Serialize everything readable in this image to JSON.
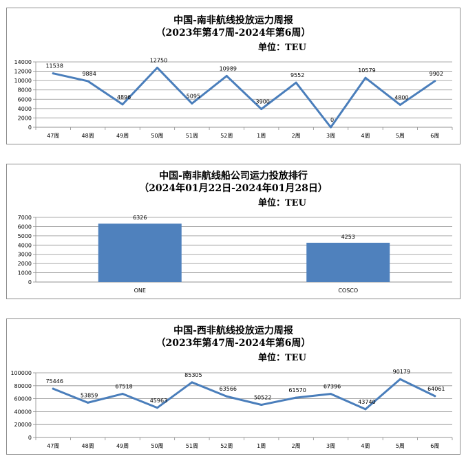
{
  "chart_data": [
    {
      "type": "line",
      "title": "中国-南非航线投放运力周报",
      "subtitle": "（2023年第47周-2024年第6周）",
      "unit_label": "单位：TEU",
      "categories": [
        "47周",
        "48周",
        "49周",
        "50周",
        "51周",
        "52周",
        "1周",
        "2周",
        "3周",
        "4周",
        "5周",
        "6周"
      ],
      "series": [
        {
          "values": [
            11538,
            9884,
            4896,
            12750,
            5095,
            10989,
            3900,
            9552,
            0,
            10579,
            4800,
            9902
          ]
        }
      ],
      "ylim": [
        0,
        14000
      ],
      "yticks": [
        0,
        2000,
        4000,
        6000,
        8000,
        10000,
        12000,
        14000
      ],
      "grid": true,
      "color": "#4a7ebb",
      "xlabel": "",
      "ylabel": ""
    },
    {
      "type": "bar",
      "title": "中国-南非航线船公司运力投放排行",
      "subtitle": "（2024年01月22日-2024年01月28日）",
      "unit_label": "单位：TEU",
      "categories": [
        "ONE",
        "COSCO"
      ],
      "values": [
        6326,
        4253
      ],
      "ylim": [
        0,
        7000
      ],
      "yticks": [
        0,
        1000,
        2000,
        3000,
        4000,
        5000,
        6000,
        7000
      ],
      "grid": true,
      "color": "#4f81bd",
      "xlabel": "",
      "ylabel": ""
    },
    {
      "type": "line",
      "title": "中国-西非航线投放运力周报",
      "subtitle": "（2023年第47周-2024年第6周）",
      "unit_label": "单位：TEU",
      "categories": [
        "47周",
        "48周",
        "49周",
        "50周",
        "51周",
        "52周",
        "1周",
        "2周",
        "3周",
        "4周",
        "5周",
        "6周"
      ],
      "series": [
        {
          "values": [
            75446,
            53859,
            67518,
            45963,
            85305,
            63566,
            50522,
            61570,
            67396,
            43740,
            90179,
            64061
          ]
        }
      ],
      "ylim": [
        0,
        100000
      ],
      "yticks": [
        0,
        20000,
        40000,
        60000,
        80000,
        100000
      ],
      "grid": true,
      "color": "#4a7ebb",
      "xlabel": "",
      "ylabel": ""
    }
  ]
}
